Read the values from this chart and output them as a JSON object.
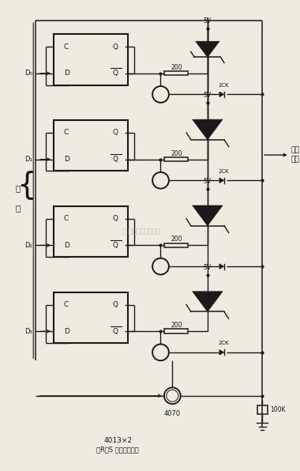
{
  "bg_color": "#f0ebe0",
  "line_color": "#1a1a1a",
  "fig_width": 3.8,
  "fig_height": 5.96,
  "dpi": 100,
  "select_label": "选通\n输出",
  "bus_label_1": "总",
  "bus_label_2": "线",
  "chip_label_line1": "4013×2",
  "chip_label_line2": "（R，S 端全部接地）",
  "xor_label": "4070",
  "res100_label": "100K",
  "vcc_label": "5V",
  "res200_label": "200",
  "ck_label": "2CK",
  "d_labels": [
    "D₀",
    "D₁",
    "D₂",
    "D₃"
  ],
  "watermark": "杭州将睿科技有限公司"
}
